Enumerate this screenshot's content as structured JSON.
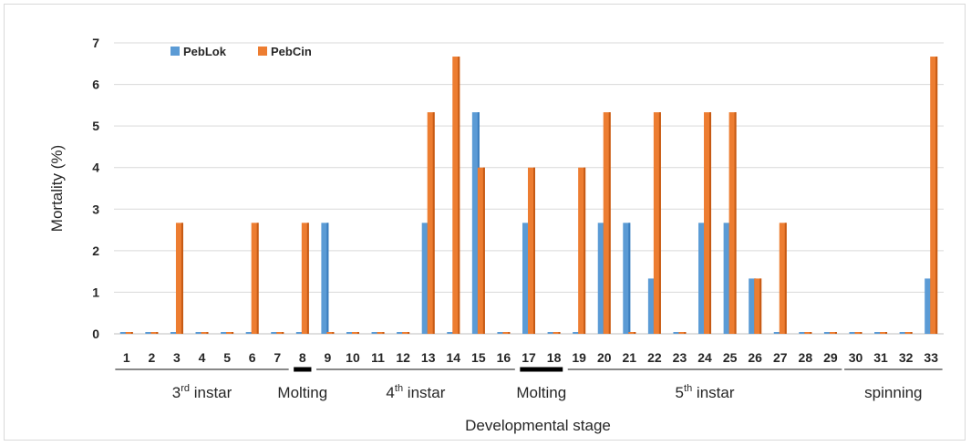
{
  "chart_data": {
    "type": "bar",
    "xlabel": "Developmental stage",
    "ylabel": "Mortality (%)",
    "ylim": [
      0,
      7
    ],
    "yticks": [
      0,
      1,
      2,
      3,
      4,
      5,
      6,
      7
    ],
    "grid": true,
    "legend_position": "top-left",
    "categories": [
      "1",
      "2",
      "3",
      "4",
      "5",
      "6",
      "7",
      "8",
      "9",
      "10",
      "11",
      "12",
      "13",
      "14",
      "15",
      "16",
      "17",
      "18",
      "19",
      "20",
      "21",
      "22",
      "23",
      "24",
      "25",
      "26",
      "27",
      "28",
      "29",
      "30",
      "31",
      "32",
      "33"
    ],
    "series": [
      {
        "name": "PebLok",
        "color": "#5b9bd5",
        "values": [
          0,
          0,
          0,
          0,
          0,
          0,
          0,
          0,
          2.67,
          0,
          0,
          0,
          2.67,
          0,
          5.33,
          0,
          2.67,
          0,
          0,
          2.67,
          2.67,
          1.33,
          0,
          2.67,
          2.67,
          1.33,
          0,
          0,
          0,
          0,
          0,
          0,
          1.33
        ]
      },
      {
        "name": "PebCin",
        "color": "#ed7d31",
        "values": [
          0,
          0,
          2.67,
          0,
          0,
          2.67,
          0,
          2.67,
          0,
          0,
          0,
          0,
          5.33,
          6.67,
          4,
          0,
          4,
          0,
          4,
          5.33,
          0,
          5.33,
          0,
          5.33,
          5.33,
          1.33,
          2.67,
          0,
          0,
          0,
          0,
          0,
          6.67
        ]
      }
    ],
    "stage_groups": [
      {
        "label": "3rd instar",
        "base": "3",
        "sup": "rd",
        "rest": " instar",
        "from": 1,
        "to": 7,
        "style": "thin"
      },
      {
        "label": "Molting",
        "base": "Molting",
        "sup": "",
        "rest": "",
        "from": 8,
        "to": 8,
        "style": "thick"
      },
      {
        "label": "4th instar",
        "base": "4",
        "sup": "th",
        "rest": " instar",
        "from": 9,
        "to": 16,
        "style": "thin"
      },
      {
        "label": "Molting",
        "base": "Molting",
        "sup": "",
        "rest": "",
        "from": 17,
        "to": 18,
        "style": "thick"
      },
      {
        "label": "5th instar",
        "base": "5",
        "sup": "th",
        "rest": " instar",
        "from": 19,
        "to": 29,
        "style": "thin"
      },
      {
        "label": "spinning",
        "base": "spinning",
        "sup": "",
        "rest": "",
        "from": 30,
        "to": 33,
        "style": "thin"
      }
    ]
  }
}
